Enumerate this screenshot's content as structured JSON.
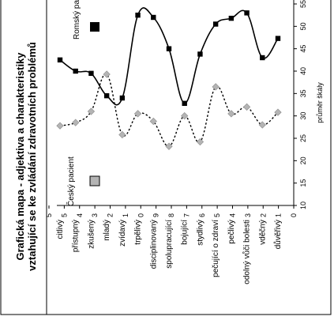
{
  "chart_data": {
    "type": "line",
    "title": "Grafická mapa - adjektiva a charakteristiky",
    "subtitle": "vztahující se ke zvládání zdravotních problémů",
    "ylabel": "průměr škály",
    "ylim": [
      10,
      55
    ],
    "y_ticks": [
      10,
      15,
      20,
      25,
      30,
      35,
      40,
      45,
      50,
      55
    ],
    "left_tick_labels": [
      "5",
      "5",
      "4",
      "3",
      "2",
      "1",
      "0",
      "9",
      "8",
      "7",
      "6",
      "5",
      "4",
      "3",
      "2",
      "1",
      "0"
    ],
    "categories": [
      "citlivý",
      "přístupný",
      "zkušený",
      "mladý",
      "zvídavý",
      "trpělivý",
      "disciplinovaný",
      "spolupracující",
      "bojující",
      "stydlivý",
      "pečující o zdraví",
      "pečlivý",
      "odolný vůči bolesti",
      "vděčný",
      "důvěřivý"
    ],
    "series": [
      {
        "name": "Romský pacient",
        "color": "#000000",
        "marker": "square",
        "line": "solid",
        "values": [
          42.5,
          40,
          39.5,
          34.5,
          34,
          52.5,
          52,
          45,
          32.8,
          43.8,
          50.5,
          51.8,
          53,
          43,
          47.3
        ]
      },
      {
        "name": "Český pacient",
        "color": "#b4b4b4",
        "marker": "diamond",
        "line": "dotted",
        "values": [
          27.8,
          28.5,
          31,
          39.3,
          25.8,
          30.5,
          28.8,
          23.2,
          30,
          24.2,
          36.5,
          30.5,
          32,
          28,
          30.8
        ]
      }
    ],
    "grid": false,
    "legend": "inside"
  }
}
